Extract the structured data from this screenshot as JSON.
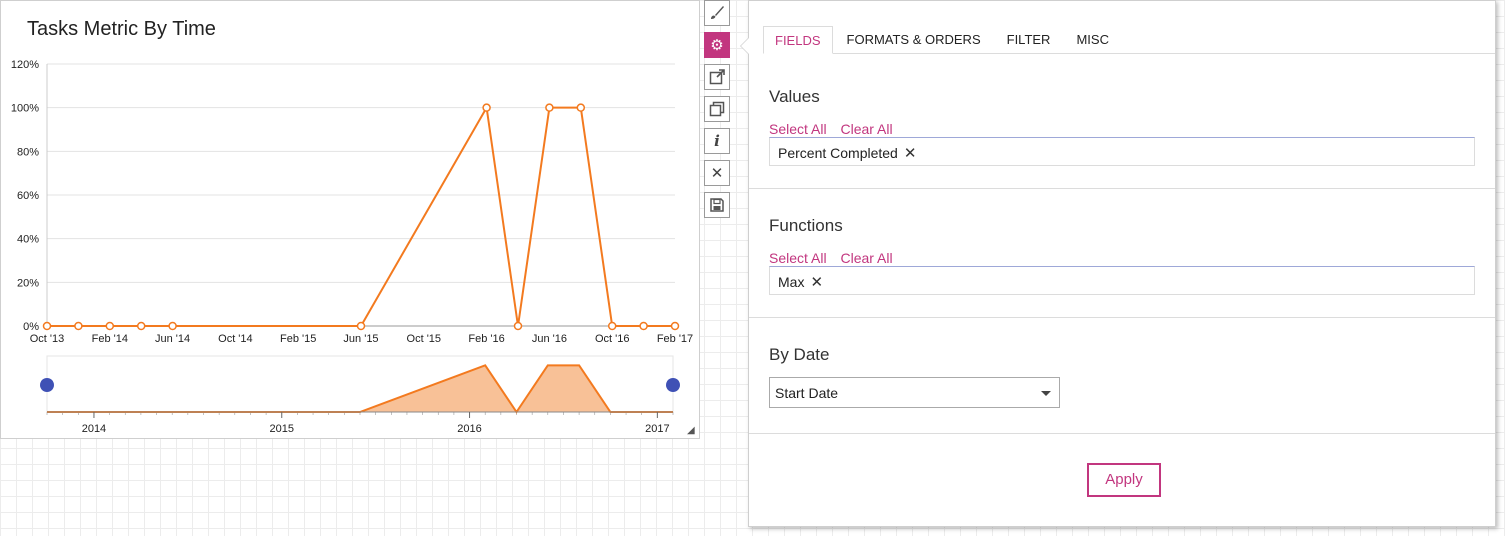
{
  "chart": {
    "title": "Tasks Metric By Time"
  },
  "toolbar": {
    "icons": [
      "brush-icon",
      "gear-icon",
      "popout-icon",
      "duplicate-icon",
      "info-icon",
      "close-icon",
      "save-icon"
    ]
  },
  "panel": {
    "tabs": [
      {
        "label": "FIELDS",
        "active": true
      },
      {
        "label": "FORMATS & ORDERS",
        "active": false
      },
      {
        "label": "FILTER",
        "active": false
      },
      {
        "label": "MISC",
        "active": false
      }
    ],
    "values": {
      "title": "Values",
      "select_all": "Select All",
      "clear_all": "Clear All",
      "chip": "Percent Completed"
    },
    "functions": {
      "title": "Functions",
      "select_all": "Select All",
      "clear_all": "Clear All",
      "chip": "Max"
    },
    "by_date": {
      "title": "By Date",
      "selected": "Start Date"
    },
    "apply_label": "Apply"
  },
  "colors": {
    "accent": "#c2367f",
    "series": "#f37a1f",
    "navigator_fill": "#f8c197",
    "handle": "#3f51b5"
  },
  "chart_data": {
    "type": "line",
    "title": "Tasks Metric By Time",
    "x_ticks": [
      "Oct '13",
      "Feb '14",
      "Jun '14",
      "Oct '14",
      "Feb '15",
      "Jun '15",
      "Oct '15",
      "Feb '16",
      "Jun '16",
      "Oct '16",
      "Feb '17"
    ],
    "y_ticks": [
      "0%",
      "20%",
      "40%",
      "60%",
      "80%",
      "100%",
      "120%"
    ],
    "ylim": [
      0,
      120
    ],
    "xlim": [
      "2013-10",
      "2017-02"
    ],
    "series": [
      {
        "x": [
          "2013-10",
          "2013-12",
          "2014-02",
          "2014-04",
          "2014-06",
          "2015-06",
          "2016-02",
          "2016-04",
          "2016-06",
          "2016-08",
          "2016-10",
          "2016-12",
          "2017-02"
        ],
        "y": [
          0,
          0,
          0,
          0,
          0,
          0,
          100,
          0,
          100,
          100,
          0,
          0,
          0
        ]
      }
    ],
    "navigator_ticks": [
      "2014",
      "2015",
      "2016",
      "2017"
    ],
    "grid": true
  }
}
